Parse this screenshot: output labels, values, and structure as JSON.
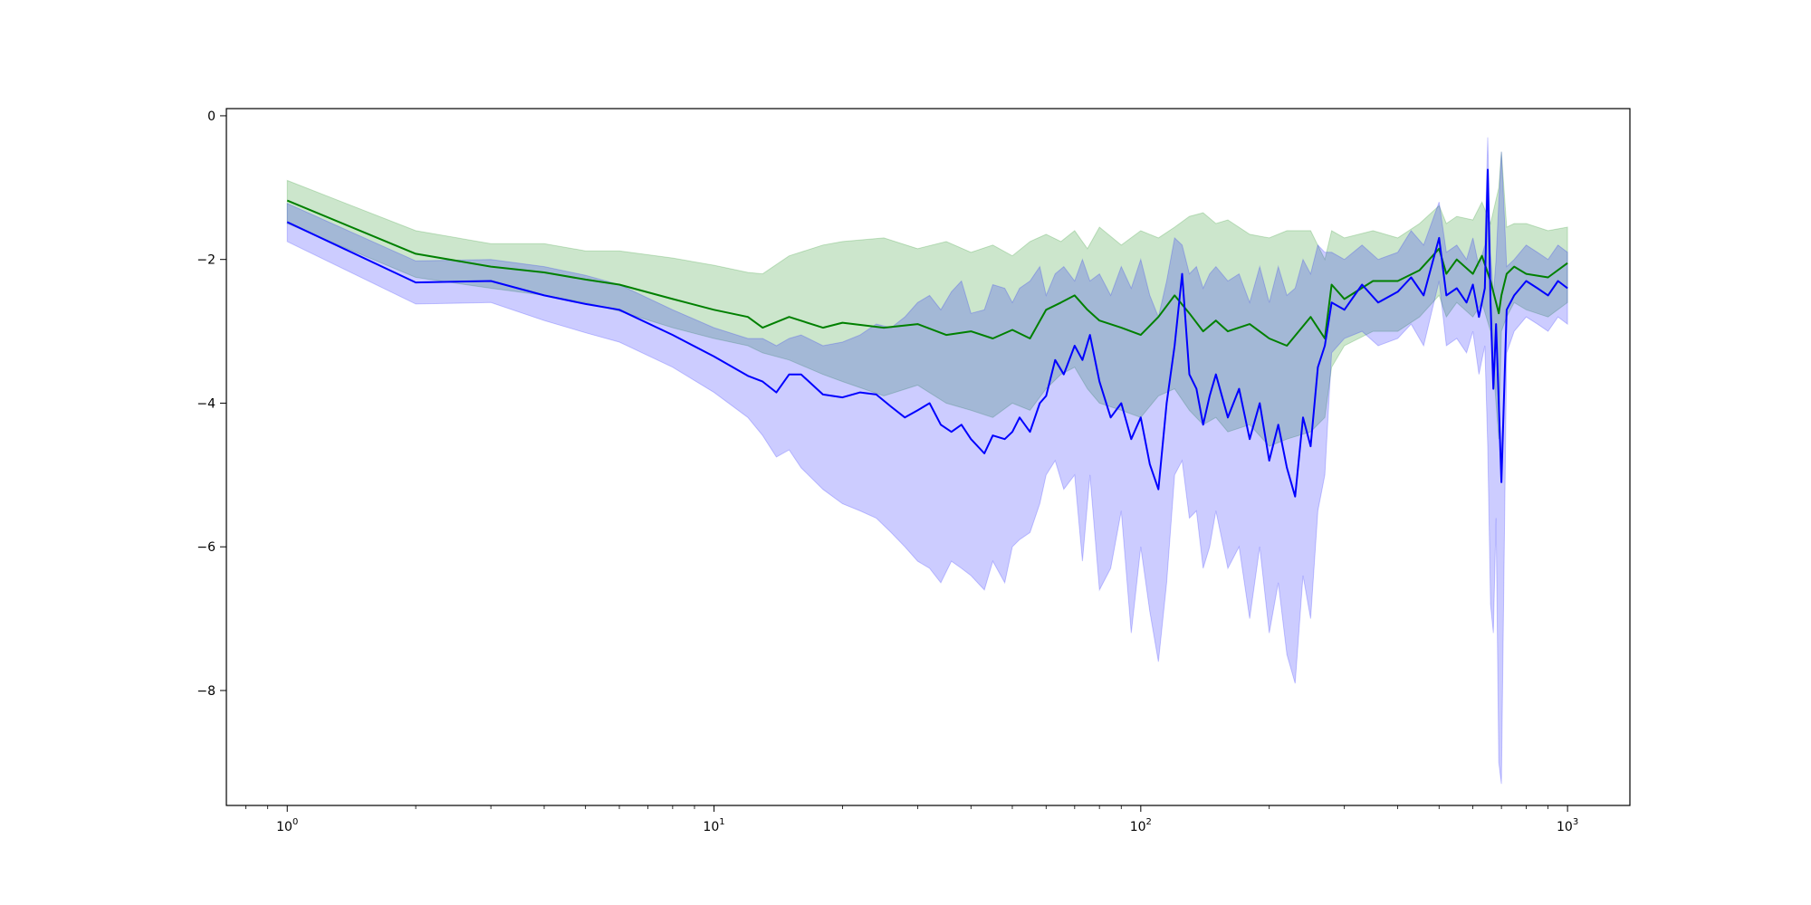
{
  "chart_data": {
    "type": "line",
    "title": "",
    "xlabel": "",
    "ylabel": "",
    "xscale": "log",
    "xlim": [
      0.72,
      1400
    ],
    "ylim": [
      -9.6,
      0.1
    ],
    "grid": false,
    "legend": "none",
    "x_ticks": [
      {
        "value": 1,
        "base": "10",
        "exp": "0"
      },
      {
        "value": 10,
        "base": "10",
        "exp": "1"
      },
      {
        "value": 100,
        "base": "10",
        "exp": "2"
      },
      {
        "value": 1000,
        "base": "10",
        "exp": "3"
      }
    ],
    "y_ticks": [
      {
        "value": 0,
        "label": "0"
      },
      {
        "value": -2,
        "label": "−2"
      },
      {
        "value": -4,
        "label": "−4"
      },
      {
        "value": -6,
        "label": "−6"
      },
      {
        "value": -8,
        "label": "−8"
      }
    ],
    "series": [
      {
        "color": "#008000",
        "band_color": "#008000",
        "band_opacity": 0.2,
        "x": [
          1,
          2,
          3,
          4,
          5,
          6,
          8,
          10,
          12,
          13,
          15,
          18,
          20,
          25,
          30,
          35,
          40,
          45,
          50,
          55,
          60,
          65,
          70,
          75,
          80,
          90,
          100,
          110,
          120,
          130,
          140,
          150,
          160,
          180,
          200,
          220,
          250,
          270,
          280,
          300,
          350,
          400,
          450,
          500,
          520,
          550,
          600,
          630,
          660,
          690,
          700,
          720,
          750,
          800,
          900,
          1000
        ],
        "y": [
          -1.18,
          -1.92,
          -2.1,
          -2.18,
          -2.28,
          -2.35,
          -2.55,
          -2.7,
          -2.8,
          -2.95,
          -2.8,
          -2.95,
          -2.88,
          -2.95,
          -2.9,
          -3.05,
          -3.0,
          -3.1,
          -2.98,
          -3.1,
          -2.7,
          -2.6,
          -2.5,
          -2.7,
          -2.85,
          -2.95,
          -3.05,
          -2.8,
          -2.5,
          -2.75,
          -3.0,
          -2.85,
          -3.0,
          -2.9,
          -3.1,
          -3.2,
          -2.8,
          -3.1,
          -2.35,
          -2.55,
          -2.3,
          -2.3,
          -2.15,
          -1.85,
          -2.2,
          -2.0,
          -2.2,
          -1.95,
          -2.3,
          -2.75,
          -2.5,
          -2.2,
          -2.1,
          -2.2,
          -2.25,
          -2.05
        ],
        "upper": [
          -0.9,
          -1.6,
          -1.78,
          -1.78,
          -1.88,
          -1.88,
          -1.98,
          -2.08,
          -2.18,
          -2.2,
          -1.95,
          -1.8,
          -1.75,
          -1.7,
          -1.85,
          -1.75,
          -1.9,
          -1.8,
          -1.95,
          -1.75,
          -1.65,
          -1.75,
          -1.6,
          -1.85,
          -1.55,
          -1.8,
          -1.6,
          -1.7,
          -1.55,
          -1.4,
          -1.35,
          -1.5,
          -1.45,
          -1.65,
          -1.7,
          -1.6,
          -1.6,
          -2.0,
          -1.6,
          -1.7,
          -1.6,
          -1.7,
          -1.5,
          -1.25,
          -1.5,
          -1.4,
          -1.45,
          -1.2,
          -1.5,
          -1.0,
          -0.5,
          -1.55,
          -1.5,
          -1.5,
          -1.6,
          -1.55
        ],
        "lower": [
          -1.5,
          -2.25,
          -2.4,
          -2.5,
          -2.6,
          -2.72,
          -2.95,
          -3.1,
          -3.2,
          -3.3,
          -3.4,
          -3.6,
          -3.7,
          -3.9,
          -3.75,
          -4.0,
          -4.1,
          -4.2,
          -4.0,
          -4.1,
          -3.8,
          -3.6,
          -3.5,
          -3.8,
          -4.0,
          -4.1,
          -4.2,
          -3.9,
          -3.8,
          -4.1,
          -4.3,
          -4.2,
          -4.4,
          -4.3,
          -4.6,
          -4.5,
          -4.4,
          -4.2,
          -3.5,
          -3.2,
          -3.0,
          -3.0,
          -2.8,
          -2.5,
          -2.8,
          -2.6,
          -2.8,
          -2.6,
          -3.0,
          -4.5,
          -3.0,
          -2.8,
          -2.6,
          -2.7,
          -2.8,
          -2.6
        ]
      },
      {
        "color": "#0000ff",
        "band_color": "#0000ff",
        "band_opacity": 0.2,
        "x": [
          1,
          2,
          3,
          4,
          5,
          6,
          8,
          10,
          12,
          13,
          14,
          15,
          16,
          18,
          20,
          22,
          24,
          26,
          28,
          30,
          32,
          34,
          36,
          38,
          40,
          43,
          45,
          48,
          50,
          52,
          55,
          58,
          60,
          63,
          66,
          70,
          73,
          76,
          80,
          85,
          90,
          95,
          100,
          105,
          110,
          115,
          120,
          125,
          130,
          135,
          140,
          145,
          150,
          160,
          170,
          180,
          190,
          200,
          210,
          220,
          230,
          240,
          250,
          260,
          270,
          280,
          300,
          330,
          360,
          400,
          430,
          460,
          500,
          520,
          550,
          580,
          600,
          620,
          640,
          650,
          660,
          670,
          680,
          690,
          700,
          720,
          750,
          800,
          850,
          900,
          950,
          1000
        ],
        "y": [
          -1.48,
          -2.32,
          -2.3,
          -2.5,
          -2.62,
          -2.7,
          -3.05,
          -3.35,
          -3.62,
          -3.7,
          -3.85,
          -3.6,
          -3.6,
          -3.88,
          -3.92,
          -3.85,
          -3.88,
          -4.05,
          -4.2,
          -4.1,
          -4.0,
          -4.3,
          -4.4,
          -4.3,
          -4.5,
          -4.7,
          -4.45,
          -4.5,
          -4.4,
          -4.2,
          -4.4,
          -4.0,
          -3.9,
          -3.4,
          -3.6,
          -3.2,
          -3.4,
          -3.05,
          -3.7,
          -4.2,
          -4.0,
          -4.5,
          -4.2,
          -4.85,
          -5.2,
          -4.0,
          -3.2,
          -2.2,
          -3.6,
          -3.8,
          -4.3,
          -3.9,
          -3.6,
          -4.2,
          -3.8,
          -4.5,
          -4.0,
          -4.8,
          -4.3,
          -4.9,
          -5.3,
          -4.2,
          -4.6,
          -3.5,
          -3.2,
          -2.6,
          -2.7,
          -2.35,
          -2.6,
          -2.45,
          -2.25,
          -2.5,
          -1.7,
          -2.5,
          -2.4,
          -2.6,
          -2.35,
          -2.8,
          -2.4,
          -0.75,
          -2.6,
          -3.8,
          -2.9,
          -4.0,
          -5.1,
          -2.7,
          -2.5,
          -2.3,
          -2.4,
          -2.5,
          -2.3,
          -2.4
        ],
        "upper": [
          -1.22,
          -2.02,
          -2.0,
          -2.1,
          -2.22,
          -2.35,
          -2.7,
          -2.95,
          -3.1,
          -3.1,
          -3.2,
          -3.1,
          -3.05,
          -3.2,
          -3.15,
          -3.05,
          -2.9,
          -2.95,
          -2.8,
          -2.6,
          -2.5,
          -2.7,
          -2.45,
          -2.3,
          -2.75,
          -2.7,
          -2.35,
          -2.4,
          -2.6,
          -2.4,
          -2.3,
          -2.1,
          -2.5,
          -2.2,
          -2.1,
          -2.3,
          -2.0,
          -2.3,
          -2.2,
          -2.5,
          -2.1,
          -2.4,
          -2.0,
          -2.5,
          -2.8,
          -2.3,
          -1.7,
          -1.8,
          -2.2,
          -2.1,
          -2.4,
          -2.2,
          -2.1,
          -2.3,
          -2.2,
          -2.6,
          -2.1,
          -2.6,
          -2.1,
          -2.5,
          -2.4,
          -2.0,
          -2.2,
          -1.8,
          -1.9,
          -1.9,
          -2.0,
          -1.8,
          -2.0,
          -1.9,
          -1.6,
          -1.8,
          -1.2,
          -1.9,
          -1.8,
          -2.0,
          -1.7,
          -2.1,
          -1.8,
          -0.3,
          -1.9,
          -2.5,
          -2.0,
          -1.2,
          -0.5,
          -2.1,
          -2.0,
          -1.8,
          -1.9,
          -2.0,
          -1.8,
          -1.9
        ],
        "lower": [
          -1.75,
          -2.62,
          -2.6,
          -2.85,
          -3.02,
          -3.15,
          -3.5,
          -3.85,
          -4.2,
          -4.45,
          -4.75,
          -4.65,
          -4.9,
          -5.2,
          -5.4,
          -5.5,
          -5.6,
          -5.8,
          -6.0,
          -6.2,
          -6.3,
          -6.5,
          -6.2,
          -6.3,
          -6.4,
          -6.6,
          -6.2,
          -6.5,
          -6.0,
          -5.9,
          -5.8,
          -5.4,
          -5.0,
          -4.8,
          -5.2,
          -5.0,
          -6.2,
          -5.0,
          -6.6,
          -6.3,
          -5.5,
          -7.2,
          -6.0,
          -6.9,
          -7.6,
          -6.5,
          -5.0,
          -4.8,
          -5.6,
          -5.5,
          -6.3,
          -6.0,
          -5.5,
          -6.3,
          -6.0,
          -7.0,
          -6.0,
          -7.2,
          -6.5,
          -7.5,
          -7.9,
          -6.4,
          -7.0,
          -5.5,
          -5.0,
          -3.3,
          -3.1,
          -3.0,
          -3.2,
          -3.1,
          -2.9,
          -3.2,
          -2.3,
          -3.2,
          -3.1,
          -3.3,
          -3.0,
          -3.6,
          -3.2,
          -4.6,
          -6.8,
          -7.2,
          -5.6,
          -9.0,
          -9.3,
          -3.3,
          -3.0,
          -2.8,
          -2.9,
          -3.0,
          -2.8,
          -2.9
        ]
      }
    ]
  }
}
